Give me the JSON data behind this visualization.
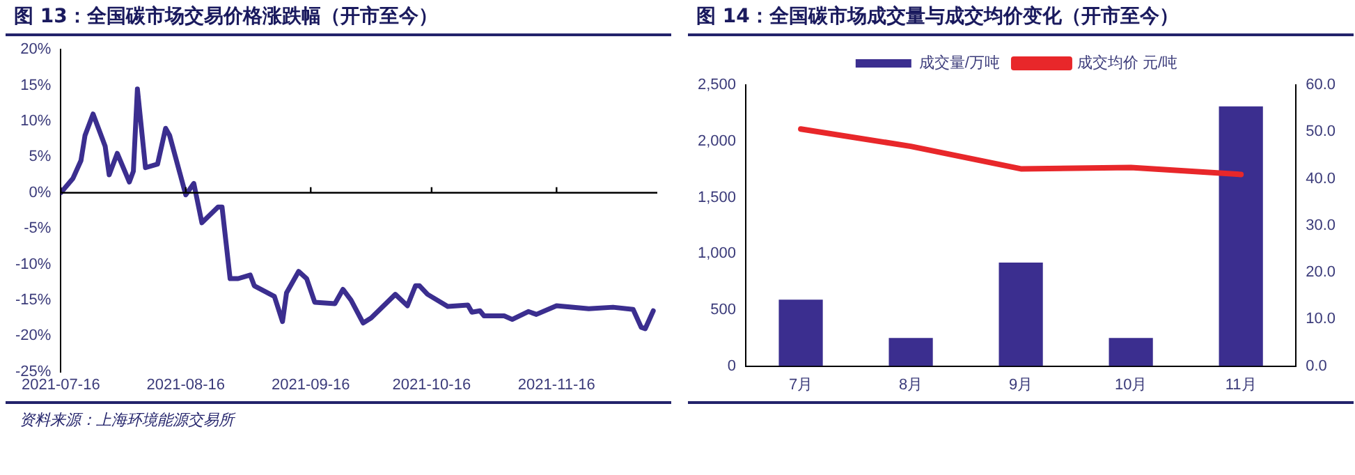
{
  "chart_data": [
    {
      "type": "line",
      "title": "图 13：全国碳市场交易价格涨跌幅（开市至今）",
      "x": [
        "2021-07-16",
        "2021-07-19",
        "2021-07-21",
        "2021-07-22",
        "2021-07-24",
        "2021-07-26",
        "2021-07-27",
        "2021-07-28",
        "2021-07-30",
        "2021-08-02",
        "2021-08-03",
        "2021-08-04",
        "2021-08-06",
        "2021-08-09",
        "2021-08-11",
        "2021-08-12",
        "2021-08-16",
        "2021-08-18",
        "2021-08-20",
        "2021-08-24",
        "2021-08-25",
        "2021-08-26",
        "2021-08-27",
        "2021-08-29",
        "2021-09-01",
        "2021-09-02",
        "2021-09-07",
        "2021-09-09",
        "2021-09-10",
        "2021-09-13",
        "2021-09-15",
        "2021-09-17",
        "2021-09-22",
        "2021-09-24",
        "2021-09-26",
        "2021-09-29",
        "2021-10-01",
        "2021-10-07",
        "2021-10-10",
        "2021-10-12",
        "2021-10-13",
        "2021-10-15",
        "2021-10-20",
        "2021-10-25",
        "2021-10-26",
        "2021-10-28",
        "2021-10-29",
        "2021-11-03",
        "2021-11-05",
        "2021-11-09",
        "2021-11-11",
        "2021-11-16",
        "2021-11-24",
        "2021-11-30",
        "2021-12-05",
        "2021-12-07",
        "2021-12-08",
        "2021-12-10"
      ],
      "series": [
        {
          "color": "#3b2e8f",
          "values": [
            0,
            2,
            4.5,
            8,
            11,
            8,
            6.5,
            2.5,
            5.5,
            1.5,
            3,
            14.5,
            3.5,
            4,
            9,
            8,
            -0.3,
            1.3,
            -4.2,
            -2,
            -2,
            -7,
            -12,
            -12,
            -11.5,
            -13,
            -14.5,
            -18,
            -14,
            -11,
            -12,
            -15.3,
            -15.5,
            -13.5,
            -15,
            -18.2,
            -17.5,
            -14.2,
            -15.8,
            -13,
            -13,
            -14.2,
            -15.9,
            -15.7,
            -16.7,
            -16.5,
            -17.2,
            -17.2,
            -17.7,
            -16.6,
            -17,
            -15.8,
            -16.2,
            -16,
            -16.3,
            -18.8,
            -19,
            -16.5
          ]
        }
      ],
      "xlim": [
        "2021-07-16",
        "2021-12-11"
      ],
      "xticks": [
        "2021-07-16",
        "2021-08-16",
        "2021-09-16",
        "2021-10-16",
        "2021-11-16"
      ],
      "ylim": [
        -25,
        20
      ],
      "yticks": [
        {
          "value": -25,
          "label": "-25%"
        },
        {
          "value": -20,
          "label": "-20%"
        },
        {
          "value": -15,
          "label": "-15%"
        },
        {
          "value": -10,
          "label": "-10%"
        },
        {
          "value": -5,
          "label": "-5%"
        },
        {
          "value": 0,
          "label": "0%"
        },
        {
          "value": 5,
          "label": "5%"
        },
        {
          "value": 10,
          "label": "10%"
        },
        {
          "value": 15,
          "label": "15%"
        },
        {
          "value": 20,
          "label": "20%"
        }
      ],
      "ref_lines": [
        {
          "axis": "y",
          "value": 0,
          "color": "#000000"
        }
      ],
      "grid": false,
      "legend": false,
      "marker": "none",
      "annotations": [
        "资料来源：上海环境能源交易所"
      ]
    },
    {
      "type": "bar",
      "title": "图 14：全国碳市场成交量与成交均价变化（开市至今）",
      "categories": [
        "7月",
        "8月",
        "9月",
        "10月",
        "11月"
      ],
      "series": [
        {
          "name": "成交量/万吨",
          "type": "bar",
          "color": "#3b2e8f",
          "values": [
            590,
            250,
            920,
            250,
            2310
          ]
        },
        {
          "name": "成交均价 元/吨",
          "type": "line",
          "axis": "y2",
          "color": "#e8272a",
          "values": [
            50.6,
            46.9,
            42.1,
            42.4,
            40.9
          ]
        }
      ],
      "ylim": [
        0,
        2500
      ],
      "yticks": [
        0,
        {
          "value": 500,
          "label": "500"
        },
        {
          "value": 1000,
          "label": "1,000"
        },
        {
          "value": 1500,
          "label": "1,500"
        },
        {
          "value": 2000,
          "label": "2,000"
        },
        {
          "value": 2500,
          "label": "2,500"
        }
      ],
      "y2lim": [
        0,
        60
      ],
      "y2ticks": [
        {
          "value": 0,
          "label": "0.0"
        },
        {
          "value": 10,
          "label": "10.0"
        },
        {
          "value": 20,
          "label": "20.0"
        },
        {
          "value": 30,
          "label": "30.0"
        },
        {
          "value": 40,
          "label": "40.0"
        },
        {
          "value": 50,
          "label": "50.0"
        },
        {
          "value": 60,
          "label": "60.0"
        }
      ],
      "grid": false,
      "legend": "top",
      "marker": "none"
    }
  ]
}
